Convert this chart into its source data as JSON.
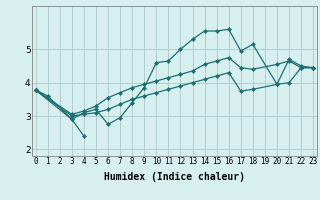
{
  "xlabel": "Humidex (Indice chaleur)",
  "bg_color": "#d8eff0",
  "grid_color": "#b0cece",
  "line_color": "#1a7070",
  "xlim": [
    -0.3,
    23.3
  ],
  "ylim": [
    1.8,
    6.3
  ],
  "xticks": [
    0,
    1,
    2,
    3,
    4,
    5,
    6,
    7,
    8,
    9,
    10,
    11,
    12,
    13,
    14,
    15,
    16,
    17,
    18,
    19,
    20,
    21,
    22,
    23
  ],
  "yticks": [
    2,
    3,
    4,
    5
  ],
  "series": [
    {
      "x": [
        0,
        1,
        3,
        4,
        5,
        6,
        7,
        8,
        9,
        10,
        11,
        12,
        13,
        14,
        15,
        16,
        17,
        18,
        20,
        21,
        22,
        23
      ],
      "y": [
        3.78,
        3.6,
        2.9,
        3.1,
        3.2,
        2.75,
        2.95,
        3.4,
        3.85,
        4.6,
        4.65,
        5.0,
        5.3,
        5.55,
        5.55,
        5.6,
        4.95,
        5.15,
        3.95,
        4.7,
        4.5,
        4.45
      ]
    },
    {
      "x": [
        0,
        3,
        4
      ],
      "y": [
        3.78,
        2.9,
        2.4
      ]
    },
    {
      "x": [
        0,
        3,
        4,
        5,
        6,
        7,
        8,
        9,
        10,
        11,
        12,
        13,
        14,
        15,
        16,
        17,
        18,
        20,
        21,
        22,
        23
      ],
      "y": [
        3.78,
        3.05,
        3.15,
        3.3,
        3.55,
        3.7,
        3.85,
        3.95,
        4.05,
        4.15,
        4.25,
        4.35,
        4.55,
        4.65,
        4.75,
        4.45,
        4.4,
        4.55,
        4.65,
        4.45,
        4.45
      ]
    },
    {
      "x": [
        0,
        3,
        4,
        5,
        6,
        7,
        8,
        9,
        10,
        11,
        12,
        13,
        14,
        15,
        16,
        17,
        18,
        20,
        21,
        22,
        23
      ],
      "y": [
        3.78,
        3.0,
        3.05,
        3.1,
        3.2,
        3.35,
        3.5,
        3.6,
        3.7,
        3.8,
        3.9,
        4.0,
        4.1,
        4.2,
        4.3,
        3.75,
        3.8,
        3.95,
        4.0,
        4.45,
        4.45
      ]
    }
  ]
}
